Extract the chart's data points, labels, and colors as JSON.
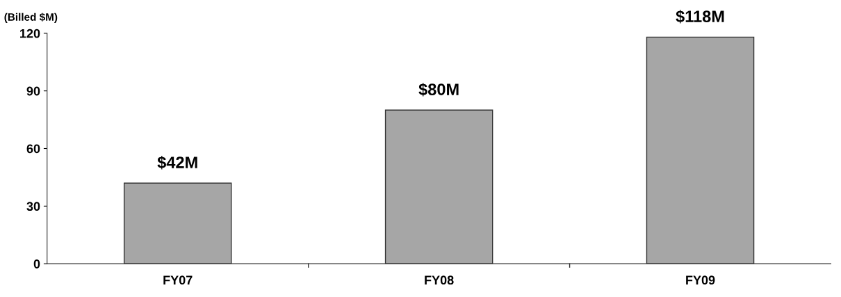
{
  "chart_data": {
    "type": "bar",
    "ylabel": "(Billed $M)",
    "categories": [
      "FY07",
      "FY08",
      "FY09"
    ],
    "values": [
      42,
      80,
      118
    ],
    "color": "#a6a6a6",
    "value_labels": [
      "$42M",
      "$80M",
      "$118M"
    ],
    "ylim": [
      0,
      120
    ],
    "yticks": [
      0,
      30,
      60,
      90,
      120
    ],
    "grid": false,
    "legend": false
  }
}
